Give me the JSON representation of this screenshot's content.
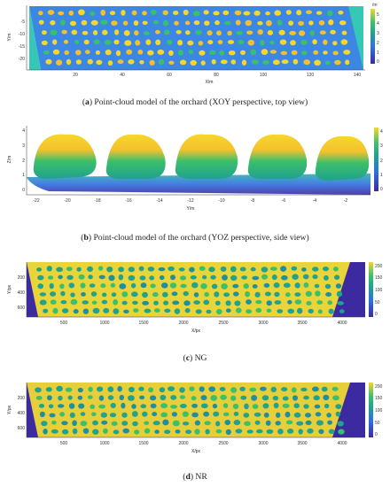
{
  "figure": {
    "panels": [
      {
        "letter": "a",
        "caption": "Point-cloud model of the orchard (XOY perspective, top view)",
        "xlabel": "X/m",
        "ylabel": "Y/m",
        "xticks": [
          "20",
          "40",
          "60",
          "80",
          "100",
          "120",
          "140"
        ],
        "yticks": [
          "-5",
          "-10",
          "-15",
          "-20"
        ],
        "colorbar_unit": "/m",
        "colorbar_ticks": [
          "5",
          "4",
          "3",
          "2",
          "1",
          "0"
        ]
      },
      {
        "letter": "b",
        "caption": "Point-cloud model of the orchard (YOZ perspective, side view)",
        "xlabel": "Y/m",
        "ylabel": "Z/m",
        "xticks": [
          "-22",
          "-20",
          "-18",
          "-16",
          "-14",
          "-12",
          "-10",
          "-8",
          "-6",
          "-4",
          "-2"
        ],
        "yticks": [
          "4",
          "3",
          "2",
          "1",
          "0"
        ],
        "colorbar_ticks": [
          "4",
          "3",
          "2",
          "1",
          "0"
        ]
      },
      {
        "letter": "c",
        "caption": "NG",
        "xlabel": "X/px",
        "ylabel": "Y/px",
        "xticks": [
          "500",
          "1000",
          "1500",
          "2000",
          "2500",
          "3000",
          "3500",
          "4000"
        ],
        "yticks": [
          "200",
          "400",
          "600"
        ],
        "colorbar_ticks": [
          "200",
          "150",
          "100",
          "50",
          "0"
        ]
      },
      {
        "letter": "d",
        "caption": "NR",
        "xlabel": "X/px",
        "ylabel": "Y/px",
        "xticks": [
          "500",
          "1000",
          "1500",
          "2000",
          "2500",
          "3000",
          "3500",
          "4000"
        ],
        "yticks": [
          "200",
          "400",
          "600"
        ],
        "colorbar_ticks": [
          "200",
          "150",
          "100",
          "50",
          "0"
        ]
      }
    ],
    "colors": {
      "dark_purple": "#3b2aa0",
      "blue": "#2f6fe0",
      "teal": "#1fa28e",
      "green": "#3cbf6a",
      "yellow": "#f6d72a",
      "yellow_orange": "#f3c12d"
    }
  }
}
